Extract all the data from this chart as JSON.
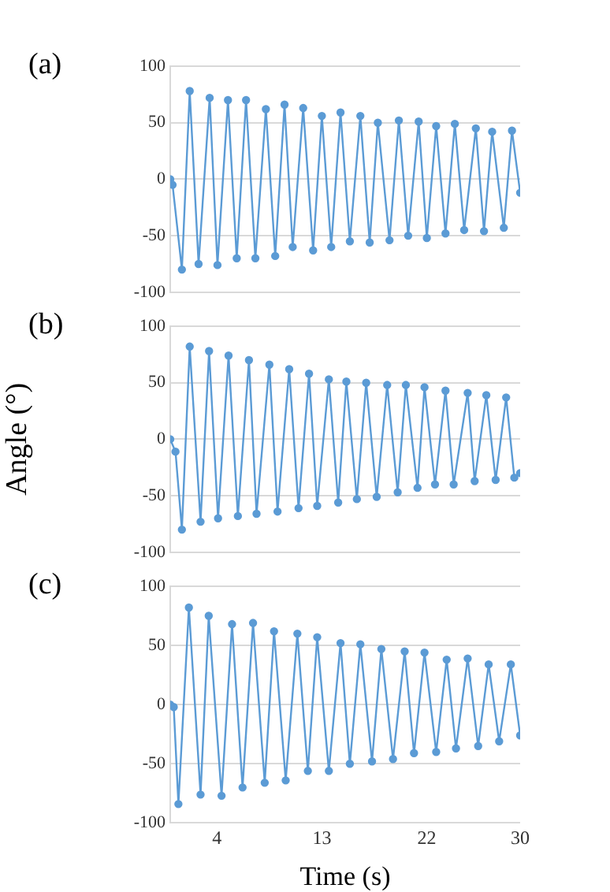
{
  "chart_data": [
    {
      "type": "line",
      "title": "(a)",
      "x": [
        0,
        0.2,
        1.0,
        1.67,
        2.43,
        3.38,
        4.05,
        4.95,
        5.7,
        6.5,
        7.3,
        8.2,
        9.0,
        9.8,
        10.5,
        11.4,
        12.25,
        13.0,
        13.8,
        14.6,
        15.4,
        16.3,
        17.1,
        17.8,
        18.8,
        19.6,
        20.4,
        21.3,
        22.0,
        22.8,
        23.6,
        24.4,
        25.2,
        26.2,
        26.9,
        27.6,
        28.6,
        29.3,
        30
      ],
      "series": [
        {
          "color": "#5b9bd5",
          "values": [
            0,
            -5,
            -80,
            78,
            -75,
            72,
            -76,
            70,
            -70,
            70,
            -70,
            62,
            -68,
            66,
            -60,
            63,
            -63,
            56,
            -60,
            59,
            -55,
            56,
            -56,
            50,
            -54,
            52,
            -50,
            51,
            -52,
            47,
            -48,
            49,
            -45,
            45,
            -46,
            42,
            -43,
            43,
            -12
          ]
        }
      ],
      "xlim": [
        0,
        30
      ],
      "xticks": [
        4,
        13,
        22,
        30
      ],
      "ylim": [
        -100,
        100
      ],
      "yticks": [
        -100,
        -50,
        0,
        50,
        100
      ],
      "grid": "y",
      "marker": "circle",
      "tick_labels": "y"
    },
    {
      "type": "line",
      "title": "(b)",
      "ylabel": "Angle (°)",
      "x": [
        0,
        0.45,
        1.0,
        1.67,
        2.6,
        3.33,
        4.1,
        5.0,
        5.8,
        6.75,
        7.4,
        8.5,
        9.2,
        10.2,
        11.0,
        11.9,
        12.6,
        13.6,
        14.4,
        15.1,
        16.0,
        16.8,
        17.7,
        18.6,
        19.5,
        20.2,
        21.2,
        21.8,
        22.7,
        23.6,
        24.3,
        25.5,
        26.1,
        27.1,
        27.9,
        28.8,
        29.5,
        30
      ],
      "series": [
        {
          "color": "#5b9bd5",
          "values": [
            0,
            -11,
            -80,
            82,
            -73,
            78,
            -70,
            74,
            -68,
            70,
            -66,
            66,
            -64,
            62,
            -61,
            58,
            -59,
            53,
            -56,
            51,
            -53,
            50,
            -51,
            48,
            -47,
            48,
            -43,
            46,
            -40,
            43,
            -40,
            41,
            -37,
            39,
            -36,
            37,
            -34,
            -30
          ]
        }
      ],
      "xlim": [
        0,
        30
      ],
      "xticks": [
        4,
        13,
        22,
        30
      ],
      "ylim": [
        -100,
        100
      ],
      "yticks": [
        -100,
        -50,
        0,
        50,
        100
      ],
      "grid": "y",
      "marker": "circle",
      "tick_labels": "y"
    },
    {
      "type": "line",
      "title": "(c)",
      "xlabel": "Time (s)",
      "x": [
        0,
        0.3,
        0.7,
        1.6,
        2.6,
        3.3,
        4.4,
        5.3,
        6.2,
        7.1,
        8.1,
        8.9,
        9.9,
        10.9,
        11.8,
        12.6,
        13.6,
        14.6,
        15.4,
        16.3,
        17.3,
        18.1,
        19.1,
        20.1,
        20.9,
        21.8,
        22.8,
        23.7,
        24.5,
        25.5,
        26.4,
        27.3,
        28.2,
        29.2,
        30
      ],
      "series": [
        {
          "color": "#5b9bd5",
          "values": [
            0,
            -2,
            -84,
            82,
            -76,
            75,
            -77,
            68,
            -70,
            69,
            -66,
            62,
            -64,
            60,
            -56,
            57,
            -56,
            52,
            -50,
            51,
            -48,
            47,
            -46,
            45,
            -41,
            44,
            -40,
            38,
            -37,
            39,
            -35,
            34,
            -31,
            34,
            -26
          ]
        }
      ],
      "xlim": [
        0,
        30
      ],
      "xticks": [
        4,
        13,
        22,
        30
      ],
      "ylim": [
        -100,
        100
      ],
      "yticks": [
        -100,
        -50,
        0,
        50,
        100
      ],
      "grid": "y",
      "marker": "circle"
    }
  ]
}
